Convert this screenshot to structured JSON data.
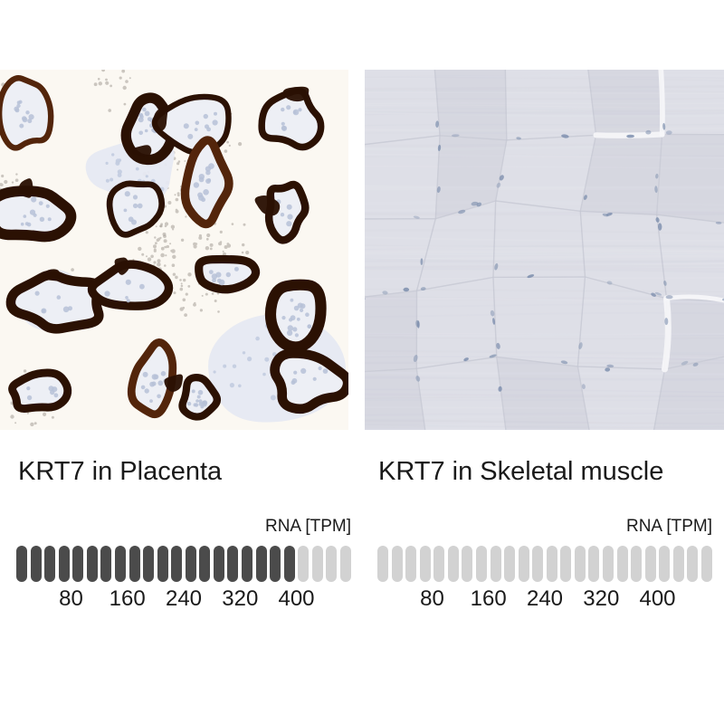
{
  "page": {
    "background": "#ffffff",
    "text_color": "#1a1a1a"
  },
  "panels": [
    {
      "id": "placenta",
      "title": "KRT7 in Placenta",
      "rna_unit_label": "RNA [TPM]",
      "micrograph": {
        "name": "ihc-image-placenta",
        "description": "IHC micrograph with strong dark-brown membranous KRT7 staining outlining placental villi, pale blue counterstained interiors, granular debris in intervillous space",
        "palette": {
          "background": "#fbf8f2",
          "stain_dark": "#2b1103",
          "stain_mid": "#53250b",
          "interior": "#edeff5",
          "nuclei": "#b6c1d7",
          "speckle": "#a49e97",
          "stroma": "#e6e9f2",
          "stroma_nuclei": "#c2cce0"
        }
      },
      "expression_bar": {
        "total_segments": 24,
        "filled_segments": 20,
        "filled_color": "#4b4b4b",
        "empty_color": "#d2d2d2",
        "ticks_every": 4,
        "tick_labels": [
          "80",
          "160",
          "240",
          "320",
          "400"
        ]
      }
    },
    {
      "id": "skeletal-muscle",
      "title": "KRT7 in Skeletal muscle",
      "rna_unit_label": "RNA [TPM]",
      "micrograph": {
        "name": "ihc-image-skeletal-muscle",
        "description": "IHC micrograph of skeletal muscle with no KRT7 staining, pale lavender fibers with faint boundaries and scattered blue-gray nuclei",
        "palette": {
          "background": "#dbdce4",
          "fiber_light": "#e3e4eb",
          "fiber_dark": "#d1d2dd",
          "boundary": "#c5c7d3",
          "cleft": "#f7f7fa",
          "nuclei": "#7b8dac"
        }
      },
      "expression_bar": {
        "total_segments": 24,
        "filled_segments": 0,
        "filled_color": "#4b4b4b",
        "empty_color": "#d2d2d2",
        "ticks_every": 4,
        "tick_labels": [
          "80",
          "160",
          "240",
          "320",
          "400"
        ]
      }
    }
  ]
}
